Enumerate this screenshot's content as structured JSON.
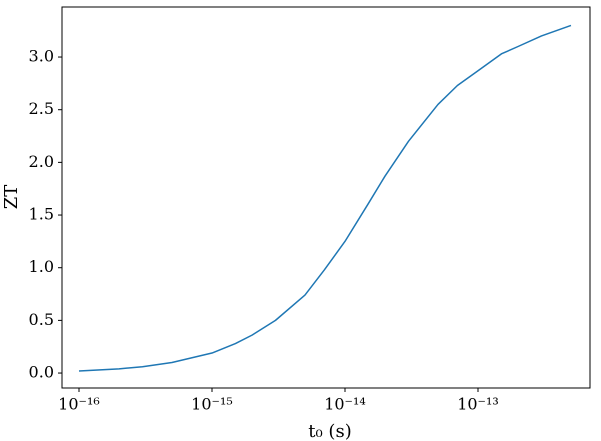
{
  "chart_data": {
    "type": "line",
    "xlabel": "t₀ (s)",
    "ylabel": "ZT",
    "x": [
      1e-16,
      2e-16,
      3e-16,
      5e-16,
      1e-15,
      1.5e-15,
      2e-15,
      3e-15,
      5e-15,
      7e-15,
      1e-14,
      1.5e-14,
      2e-14,
      3e-14,
      5e-14,
      7e-14,
      1e-13,
      1.5e-13,
      2e-13,
      3e-13,
      5e-13
    ],
    "values": [
      0.02,
      0.04,
      0.06,
      0.1,
      0.19,
      0.28,
      0.36,
      0.5,
      0.74,
      0.98,
      1.25,
      1.61,
      1.87,
      2.2,
      2.55,
      2.73,
      2.87,
      3.03,
      3.1,
      3.2,
      3.3
    ],
    "color": "#1f77b4",
    "xscale": "log",
    "xlim": [
      7.45e-17,
      6.95e-13
    ],
    "xticks": [
      {
        "value": 1e-16,
        "label": "10⁻¹⁶"
      },
      {
        "value": 1e-15,
        "label": "10⁻¹⁵"
      },
      {
        "value": 1e-14,
        "label": "10⁻¹⁴"
      },
      {
        "value": 1e-13,
        "label": "10⁻¹³"
      }
    ],
    "ylim": [
      -0.142,
      3.475
    ],
    "yticks": [
      {
        "value": 0,
        "label": "0.0"
      },
      0.5,
      {
        "value": 1,
        "label": "1.0"
      },
      1.5,
      {
        "value": 2,
        "label": "2.0"
      },
      2.5,
      {
        "value": 3,
        "label": "3.0"
      }
    ],
    "grid": false
  }
}
